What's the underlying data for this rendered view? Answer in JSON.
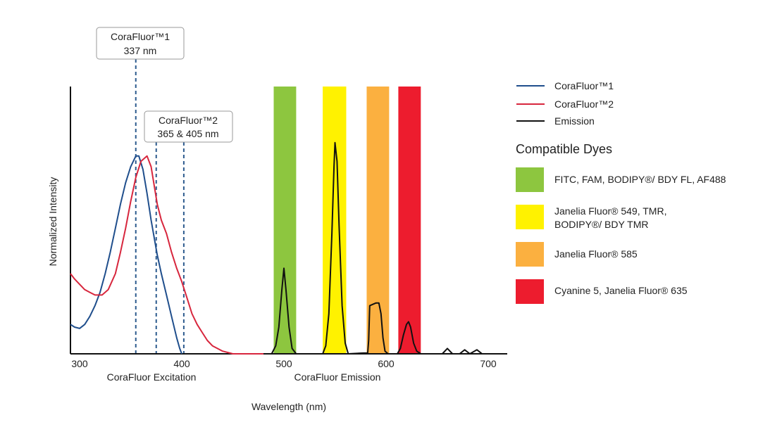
{
  "chart_data": {
    "type": "line",
    "ylabel": "Normalized Intensity",
    "xlabel": "Wavelength (nm)",
    "x_sublabels": {
      "excitation": "CoraFluor Excitation",
      "emission": "CoraFluor Emission"
    },
    "xlim": [
      291,
      718
    ],
    "ylim": [
      0,
      1
    ],
    "x_ticks": [
      300,
      400,
      500,
      600,
      700
    ],
    "grid": false,
    "legend_position": "right",
    "series": [
      {
        "name": "CoraFluor™1",
        "color": "#1f4e8c",
        "points": [
          [
            291,
            0.11
          ],
          [
            295,
            0.1
          ],
          [
            300,
            0.095
          ],
          [
            305,
            0.11
          ],
          [
            310,
            0.14
          ],
          [
            315,
            0.18
          ],
          [
            320,
            0.23
          ],
          [
            325,
            0.3
          ],
          [
            330,
            0.38
          ],
          [
            335,
            0.47
          ],
          [
            340,
            0.56
          ],
          [
            345,
            0.64
          ],
          [
            350,
            0.7
          ],
          [
            355,
            0.74
          ],
          [
            358,
            0.74
          ],
          [
            362,
            0.69
          ],
          [
            366,
            0.6
          ],
          [
            370,
            0.5
          ],
          [
            376,
            0.37
          ],
          [
            380,
            0.3
          ],
          [
            385,
            0.22
          ],
          [
            390,
            0.14
          ],
          [
            395,
            0.06
          ],
          [
            398,
            0.02
          ],
          [
            400,
            0
          ]
        ]
      },
      {
        "name": "CoraFluor™2",
        "color": "#d7263d",
        "points": [
          [
            291,
            0.3
          ],
          [
            295,
            0.28
          ],
          [
            300,
            0.26
          ],
          [
            305,
            0.24
          ],
          [
            310,
            0.23
          ],
          [
            315,
            0.22
          ],
          [
            322,
            0.22
          ],
          [
            328,
            0.24
          ],
          [
            335,
            0.3
          ],
          [
            340,
            0.38
          ],
          [
            345,
            0.47
          ],
          [
            350,
            0.57
          ],
          [
            355,
            0.66
          ],
          [
            360,
            0.72
          ],
          [
            366,
            0.74
          ],
          [
            370,
            0.7
          ],
          [
            376,
            0.56
          ],
          [
            380,
            0.5
          ],
          [
            385,
            0.45
          ],
          [
            390,
            0.38
          ],
          [
            395,
            0.32
          ],
          [
            400,
            0.27
          ],
          [
            405,
            0.21
          ],
          [
            410,
            0.15
          ],
          [
            415,
            0.11
          ],
          [
            420,
            0.08
          ],
          [
            425,
            0.05
          ],
          [
            430,
            0.03
          ],
          [
            440,
            0.01
          ],
          [
            450,
            0
          ],
          [
            480,
            0
          ]
        ]
      },
      {
        "name": "Emission",
        "color": "#111111",
        "points": [
          [
            480,
            0
          ],
          [
            488,
            0
          ],
          [
            492,
            0.03
          ],
          [
            495,
            0.1
          ],
          [
            498,
            0.24
          ],
          [
            500,
            0.32
          ],
          [
            502,
            0.24
          ],
          [
            505,
            0.1
          ],
          [
            508,
            0.02
          ],
          [
            512,
            0
          ],
          [
            538,
            0
          ],
          [
            541,
            0.03
          ],
          [
            544,
            0.15
          ],
          [
            547,
            0.45
          ],
          [
            549,
            0.7
          ],
          [
            550,
            0.79
          ],
          [
            552,
            0.72
          ],
          [
            554,
            0.48
          ],
          [
            557,
            0.18
          ],
          [
            560,
            0.04
          ],
          [
            563,
            0
          ],
          [
            578,
            0.003
          ],
          [
            582,
            0.003
          ],
          [
            583,
            0.05
          ],
          [
            584,
            0.18
          ],
          [
            587,
            0.185
          ],
          [
            590,
            0.19
          ],
          [
            593,
            0.19
          ],
          [
            595,
            0.15
          ],
          [
            597,
            0.06
          ],
          [
            599,
            0.01
          ],
          [
            602,
            0
          ],
          [
            611,
            0
          ],
          [
            614,
            0.02
          ],
          [
            617,
            0.07
          ],
          [
            620,
            0.11
          ],
          [
            622,
            0.12
          ],
          [
            624,
            0.1
          ],
          [
            627,
            0.04
          ],
          [
            630,
            0.01
          ],
          [
            634,
            0
          ],
          [
            655,
            0
          ],
          [
            660,
            0.02
          ],
          [
            665,
            0
          ],
          [
            672,
            0
          ],
          [
            677,
            0.015
          ],
          [
            682,
            0
          ],
          [
            689,
            0.015
          ],
          [
            694,
            0
          ],
          [
            718,
            0
          ]
        ]
      }
    ],
    "annotations": [
      {
        "line1": "CoraFluor™1",
        "line2": "337 nm",
        "lines_at_nm": [
          355
        ]
      },
      {
        "line1": "CoraFluor™2",
        "line2": "365 & 405 nm",
        "lines_at_nm": [
          375,
          402
        ]
      }
    ],
    "dye_bands": [
      {
        "range": [
          490,
          512
        ],
        "color": "#8dc63f",
        "label": "FITC, FAM, BODIPY®/ BDY FL, AF488"
      },
      {
        "range": [
          538,
          561
        ],
        "color": "#fff200",
        "label": "Janelia Fluor® 549, TMR,",
        "label2": "BODIPY®/ BDY TMR"
      },
      {
        "range": [
          581,
          603
        ],
        "color": "#fbb040",
        "label": "Janelia Fluor® 585"
      },
      {
        "range": [
          612,
          634
        ],
        "color": "#ed1c2e",
        "label": "Cyanine 5, Janelia Fluor® 635"
      }
    ],
    "dyes_title": "Compatible Dyes"
  }
}
